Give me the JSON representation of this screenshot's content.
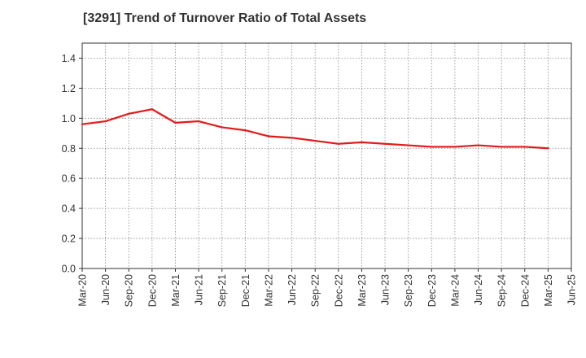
{
  "chart_data": {
    "type": "line",
    "title": "[3291]  Trend of Turnover Ratio of Total Assets",
    "xlabel": "",
    "ylabel": "",
    "x_ticks": [
      "Mar-20",
      "Jun-20",
      "Sep-20",
      "Dec-20",
      "Mar-21",
      "Jun-21",
      "Sep-21",
      "Dec-21",
      "Mar-22",
      "Jun-22",
      "Sep-22",
      "Dec-22",
      "Mar-23",
      "Jun-23",
      "Sep-23",
      "Dec-23",
      "Mar-24",
      "Jun-24",
      "Sep-24",
      "Dec-24",
      "Mar-25",
      "Jun-25"
    ],
    "y_ticks": [
      "0.0",
      "0.2",
      "0.4",
      "0.6",
      "0.8",
      "1.0",
      "1.2",
      "1.4"
    ],
    "ylim": [
      0,
      1.5
    ],
    "grid": true,
    "series": [
      {
        "color": "#e31a1c",
        "x": [
          "Mar-20",
          "Jun-20",
          "Sep-20",
          "Dec-20",
          "Mar-21",
          "Jun-21",
          "Sep-21",
          "Dec-21",
          "Mar-22",
          "Jun-22",
          "Sep-22",
          "Dec-22",
          "Mar-23",
          "Jun-23",
          "Sep-23",
          "Dec-23",
          "Mar-24",
          "Jun-24",
          "Sep-24",
          "Dec-24",
          "Mar-25"
        ],
        "values": [
          0.96,
          0.98,
          1.03,
          1.06,
          0.97,
          0.98,
          0.94,
          0.92,
          0.88,
          0.87,
          0.85,
          0.83,
          0.84,
          0.83,
          0.82,
          0.81,
          0.81,
          0.82,
          0.81,
          0.81,
          0.8
        ]
      }
    ]
  }
}
